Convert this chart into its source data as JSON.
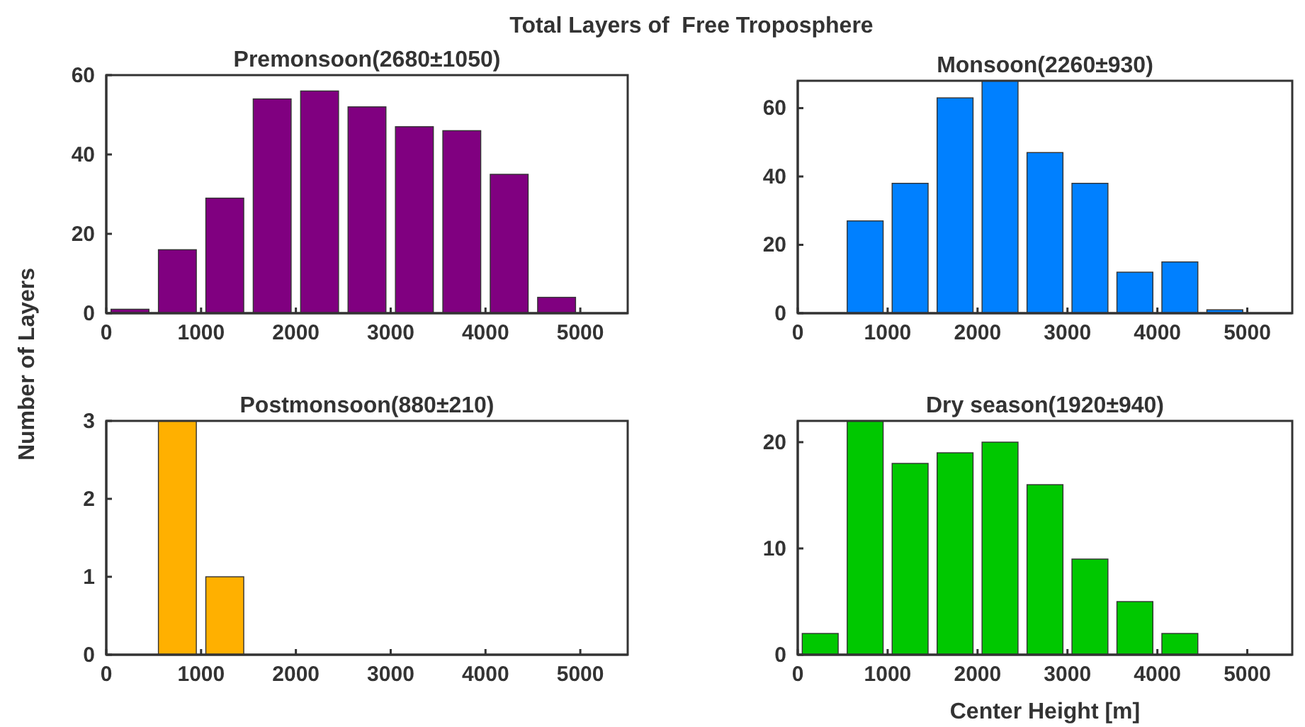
{
  "chart_data": [
    {
      "type": "histogram",
      "title": "Premonsoon(2680±1050)",
      "ylabel": "Number of Layers",
      "annotations": [
        "Total Layers of  Free Troposphere"
      ],
      "bins": [
        0,
        500,
        1000,
        1500,
        2000,
        2500,
        3000,
        3500,
        4000,
        4500,
        5000
      ],
      "values": [
        1,
        16,
        29,
        54,
        56,
        52,
        47,
        46,
        35,
        4
      ],
      "color": "#800080",
      "xlim": [
        0,
        5500
      ],
      "xticks": [
        0,
        1000,
        2000,
        3000,
        4000,
        5000
      ],
      "ylim": [
        0,
        60
      ],
      "yticks": [
        0,
        20,
        40,
        60
      ]
    },
    {
      "type": "histogram",
      "title": "Monsoon(2260±930)",
      "bins": [
        0,
        500,
        1000,
        1500,
        2000,
        2500,
        3000,
        3500,
        4000,
        4500,
        5000
      ],
      "values": [
        0,
        27,
        38,
        63,
        68,
        47,
        38,
        12,
        15,
        1
      ],
      "color": "#0080ff",
      "xlim": [
        0,
        5500
      ],
      "xticks": [
        0,
        1000,
        2000,
        3000,
        4000,
        5000
      ],
      "ylim": [
        0,
        68
      ],
      "yticks": [
        0,
        20,
        40,
        60
      ]
    },
    {
      "type": "histogram",
      "title": "Postmonsoon(880±210)",
      "bins": [
        0,
        500,
        1000,
        1500,
        2000,
        2500,
        3000,
        3500,
        4000,
        4500,
        5000
      ],
      "values": [
        0,
        3,
        1,
        0,
        0,
        0,
        0,
        0,
        0,
        0
      ],
      "color": "#ffb000",
      "xlim": [
        0,
        5500
      ],
      "xticks": [
        0,
        1000,
        2000,
        3000,
        4000,
        5000
      ],
      "ylim": [
        0,
        3
      ],
      "yticks": [
        0,
        1,
        2,
        3
      ]
    },
    {
      "type": "histogram",
      "title": "Dry season(1920±940)",
      "xlabel": "Center Height [m]",
      "bins": [
        0,
        500,
        1000,
        1500,
        2000,
        2500,
        3000,
        3500,
        4000,
        4500,
        5000
      ],
      "values": [
        2,
        22,
        18,
        19,
        20,
        16,
        9,
        5,
        2,
        0
      ],
      "color": "#00c800",
      "xlim": [
        0,
        5500
      ],
      "xticks": [
        0,
        1000,
        2000,
        3000,
        4000,
        5000
      ],
      "ylim": [
        0,
        22
      ],
      "yticks": [
        0,
        10,
        20
      ]
    }
  ]
}
